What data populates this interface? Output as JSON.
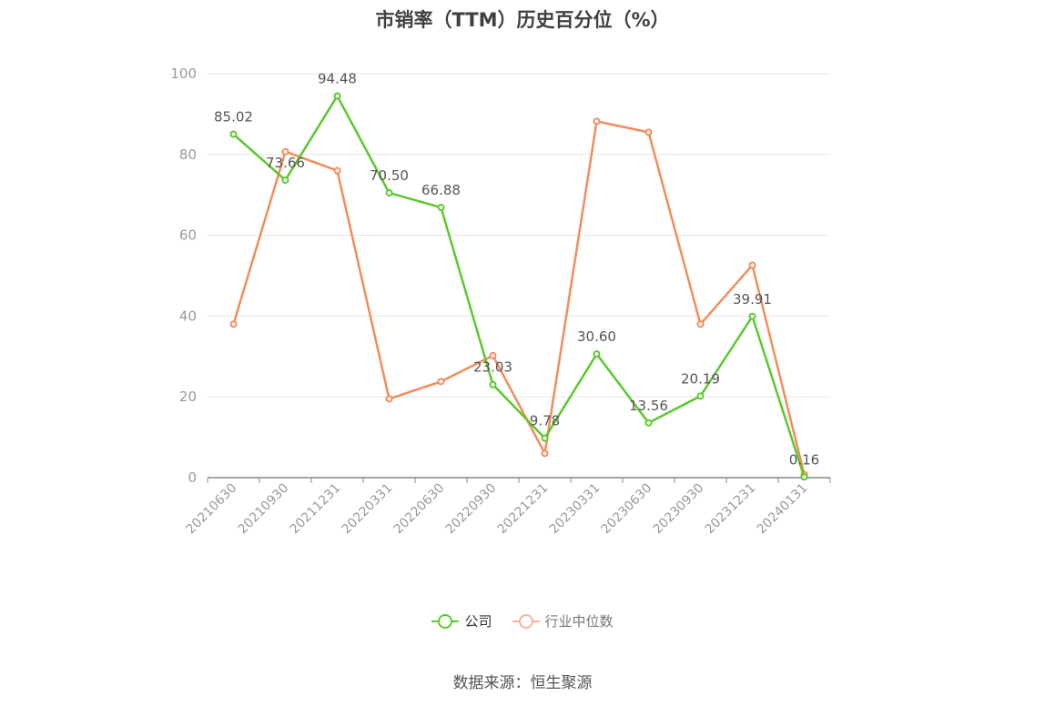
{
  "title": "市销率（TTM）历史百分位（%）",
  "source": "数据来源：恒生聚源",
  "colors": {
    "company": "#5cc82c",
    "industry": "#f28c5c",
    "industry_legend": "#f5b49a",
    "axis": "#888888",
    "grid": "#e6e6e6",
    "label": "#555555"
  },
  "legend": [
    {
      "key": "company",
      "label": "公司"
    },
    {
      "key": "industry",
      "label": "行业中位数"
    }
  ],
  "chart_data": {
    "type": "line",
    "title": "市销率（TTM）历史百分位（%）",
    "categories": [
      "20210630",
      "20210930",
      "20211231",
      "20220331",
      "20220630",
      "20220930",
      "20221231",
      "20230331",
      "20230630",
      "20230930",
      "20231231",
      "20240131"
    ],
    "ylim": [
      0,
      100
    ],
    "yticks": [
      0,
      20,
      40,
      60,
      80,
      100
    ],
    "grid": true,
    "legend_position": "bottom",
    "series": [
      {
        "name": "公司",
        "values": [
          85.02,
          73.66,
          94.48,
          70.5,
          66.88,
          23.03,
          9.78,
          30.6,
          13.56,
          20.19,
          39.91,
          0.16
        ],
        "labels": [
          "85.02",
          "73.66",
          "94.48",
          "70.50",
          "66.88",
          "23.03",
          "9.78",
          "30.60",
          "13.56",
          "20.19",
          "39.91",
          "0.16"
        ]
      },
      {
        "name": "行业中位数",
        "values": [
          38.0,
          80.7,
          76.0,
          19.5,
          23.8,
          30.2,
          6.0,
          88.2,
          85.5,
          38.0,
          52.6,
          0.8
        ]
      }
    ]
  }
}
